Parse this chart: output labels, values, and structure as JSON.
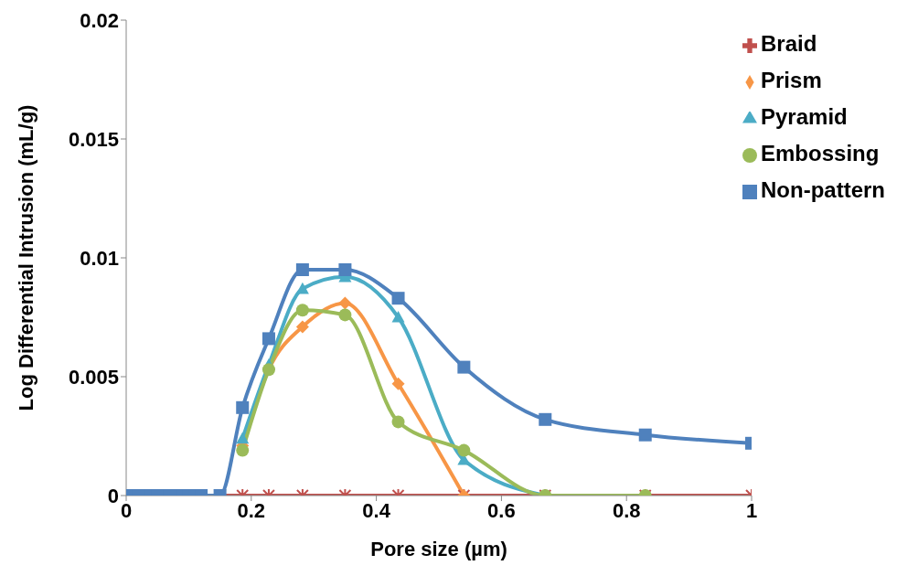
{
  "chart_data": {
    "type": "line",
    "xlabel": "Pore size (µm)",
    "ylabel": "Log Differential Intrusion (mL/g)",
    "x": [
      0,
      0.01,
      0.02,
      0.03,
      0.04,
      0.05,
      0.06,
      0.07,
      0.08,
      0.09,
      0.1,
      0.11,
      0.12,
      0.15,
      0.186,
      0.228,
      0.282,
      0.35,
      0.435,
      0.54,
      0.67,
      0.83,
      1.0
    ],
    "series": [
      {
        "name": "Braid",
        "color": "#c0504d",
        "marker": "cross",
        "values": [
          null,
          null,
          null,
          null,
          null,
          null,
          null,
          null,
          null,
          null,
          null,
          null,
          null,
          0,
          0,
          0,
          0,
          0,
          0,
          0,
          0,
          0,
          0
        ]
      },
      {
        "name": "Prism",
        "color": "#f79646",
        "marker": "diamond",
        "values": [
          null,
          null,
          null,
          null,
          null,
          null,
          null,
          null,
          null,
          null,
          null,
          null,
          null,
          null,
          0.0021,
          0.0053,
          0.0071,
          0.0081,
          0.0047,
          0,
          null,
          null,
          null
        ]
      },
      {
        "name": "Pyramid",
        "color": "#4bacc6",
        "marker": "triangle",
        "values": [
          null,
          null,
          null,
          null,
          null,
          null,
          null,
          null,
          null,
          null,
          null,
          null,
          null,
          null,
          0.0024,
          0.0055,
          0.0087,
          0.0092,
          0.0075,
          0.0015,
          0,
          null,
          null
        ]
      },
      {
        "name": "Embossing",
        "color": "#9bbb59",
        "marker": "circle",
        "values": [
          null,
          null,
          null,
          null,
          null,
          null,
          null,
          null,
          null,
          null,
          null,
          null,
          null,
          null,
          0.0019,
          0.0053,
          0.0078,
          0.0076,
          0.0031,
          0.0019,
          0,
          0,
          null
        ]
      },
      {
        "name": "Non-pattern",
        "color": "#4f81bd",
        "marker": "square",
        "values": [
          0,
          0,
          0,
          0,
          0,
          0,
          0,
          0,
          0,
          0,
          0,
          0,
          0,
          0,
          0.0037,
          0.0066,
          0.0095,
          0.0095,
          0.0083,
          0.0054,
          0.0032,
          0.00255,
          0.0022
        ]
      }
    ],
    "xlim": [
      0,
      1
    ],
    "xticks": [
      0,
      0.2,
      0.4,
      0.6,
      0.8,
      1
    ],
    "ylim": [
      0,
      0.02
    ],
    "yticks": [
      0,
      0.005,
      0.01,
      0.015,
      0.02
    ],
    "grid": false,
    "legend": "top right",
    "line_style": "solid"
  }
}
